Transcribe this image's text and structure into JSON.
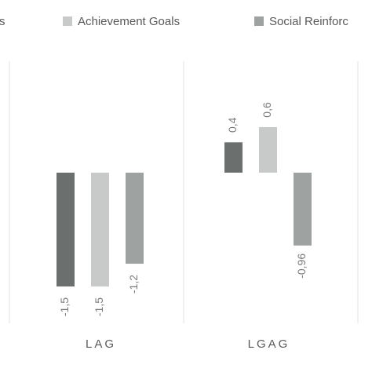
{
  "chart_data": {
    "type": "bar",
    "categories": [
      "LAG",
      "LGAG"
    ],
    "series": [
      {
        "name": "oals",
        "color": "#6b6f6e",
        "values": [
          -1.5,
          0.4
        ],
        "value_labels": [
          "-1,5",
          "0,4"
        ]
      },
      {
        "name": "Achievement Goals",
        "color": "#c8cac9",
        "values": [
          -1.5,
          0.6
        ],
        "value_labels": [
          "-1,5",
          "0,6"
        ]
      },
      {
        "name": "Social Reinforc",
        "color": "#9ea3a2",
        "values": [
          -1.2,
          -0.96
        ],
        "value_labels": [
          "-1,2",
          "-0,96"
        ]
      }
    ]
  }
}
